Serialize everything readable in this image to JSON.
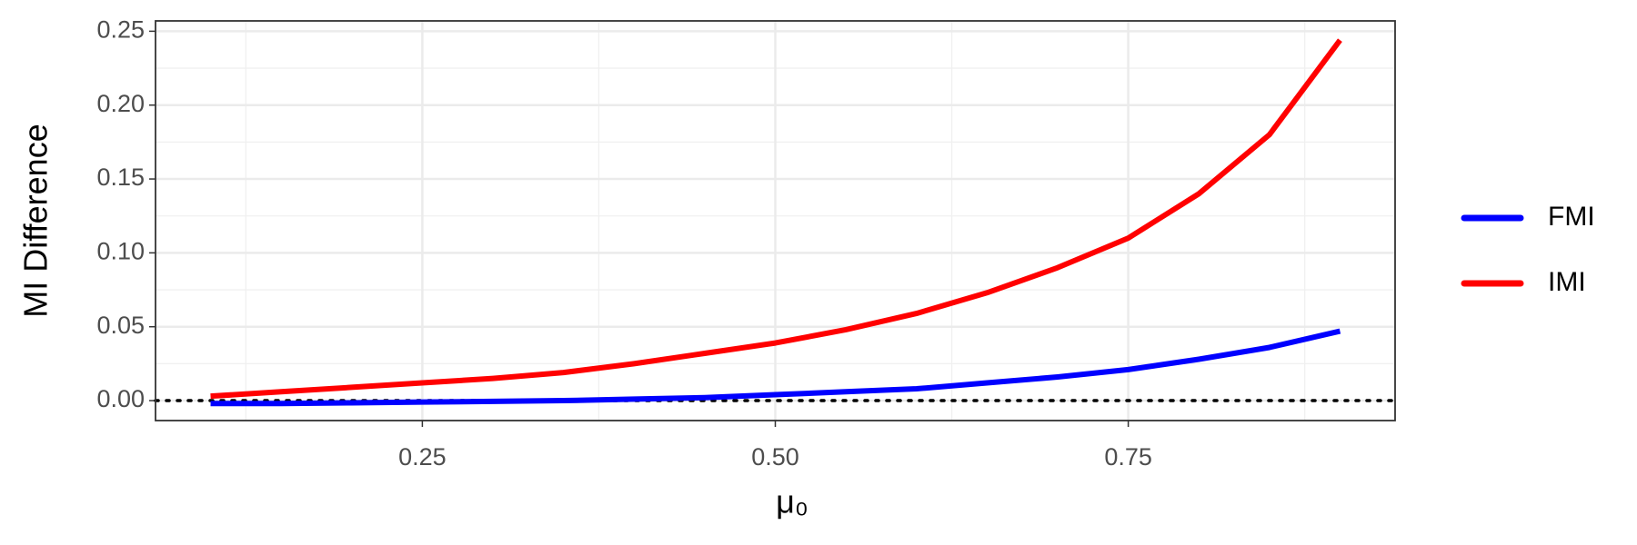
{
  "chart_data": {
    "type": "line",
    "x_label": "μ₀",
    "y_label": "MI  Difference",
    "x": [
      0.1,
      0.15,
      0.2,
      0.25,
      0.3,
      0.35,
      0.4,
      0.45,
      0.5,
      0.55,
      0.6,
      0.65,
      0.7,
      0.75,
      0.8,
      0.85,
      0.9
    ],
    "series": [
      {
        "name": "FMI",
        "color": "#0000ff",
        "values": [
          -0.002,
          -0.002,
          -0.0015,
          -0.001,
          -0.0005,
          0,
          0.001,
          0.002,
          0.004,
          0.006,
          0.008,
          0.012,
          0.016,
          0.021,
          0.028,
          0.036,
          0.047
        ]
      },
      {
        "name": "IMI",
        "color": "#ff0000",
        "values": [
          0.003,
          0.006,
          0.009,
          0.012,
          0.015,
          0.019,
          0.025,
          0.032,
          0.039,
          0.048,
          0.059,
          0.073,
          0.09,
          0.11,
          0.14,
          0.18,
          0.244
        ]
      }
    ],
    "xlim": [
      0.061,
      0.939
    ],
    "ylim": [
      -0.0135,
      0.257
    ],
    "xticks": [
      0.25,
      {
        "value": 0.5,
        "label": "0.50"
      },
      0.75
    ],
    "yticks": [
      {
        "value": 0,
        "label": "0.00"
      },
      0.05,
      {
        "value": 0.1,
        "label": "0.10"
      },
      0.15,
      {
        "value": 0.2,
        "label": "0.20"
      },
      0.25
    ],
    "x_minor_ticks": [
      0.125,
      0.375,
      0.625,
      0.875
    ],
    "y_minor_ticks": [
      0.025,
      0.075,
      0.125,
      0.175,
      0.225
    ],
    "hline": 0,
    "grid": true,
    "legend_position": "right"
  }
}
